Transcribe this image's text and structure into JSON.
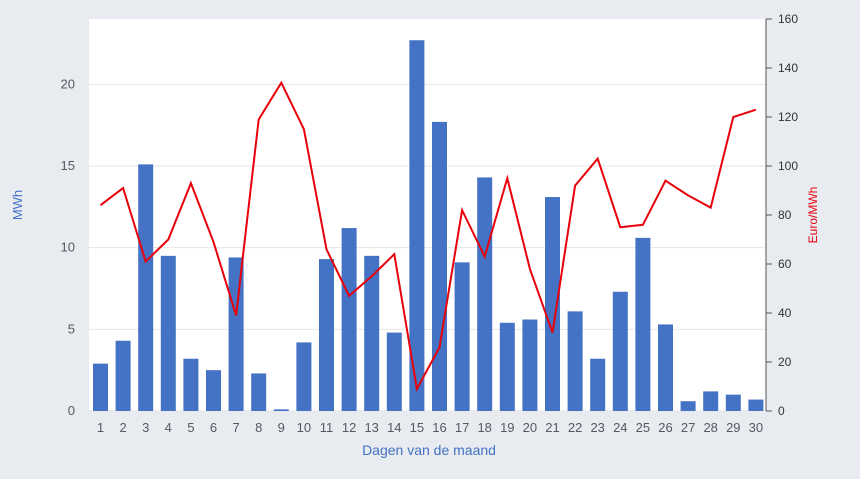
{
  "chart_data": {
    "type": "bar+line",
    "title": "",
    "xlabel": "Dagen van de maand",
    "ylabel_left": "MWh",
    "ylabel_right": "Euro/MWh",
    "ylim_left": [
      0,
      24
    ],
    "ylim_right": [
      0,
      160
    ],
    "yticks_left": [
      0,
      5,
      10,
      15,
      20
    ],
    "yticks_right": [
      0,
      20,
      40,
      60,
      80,
      100,
      120,
      140,
      160
    ],
    "grid": true,
    "categories": [
      "1",
      "2",
      "3",
      "4",
      "5",
      "6",
      "7",
      "8",
      "9",
      "10",
      "11",
      "12",
      "13",
      "14",
      "15",
      "16",
      "17",
      "18",
      "19",
      "20",
      "21",
      "22",
      "23",
      "24",
      "25",
      "26",
      "27",
      "28",
      "29",
      "30"
    ],
    "series": [
      {
        "kind": "bar",
        "axis": "left",
        "color": "#4472c4",
        "values": [
          2.9,
          4.3,
          15.1,
          9.5,
          3.2,
          2.5,
          9.4,
          2.3,
          0.1,
          4.2,
          9.3,
          11.2,
          9.5,
          4.8,
          22.7,
          17.7,
          9.1,
          14.3,
          5.4,
          5.6,
          13.1,
          6.1,
          3.2,
          7.3,
          10.6,
          5.3,
          0.6,
          1.2,
          1.0,
          0.7
        ]
      },
      {
        "kind": "line",
        "axis": "right",
        "color": "#e8000b",
        "values": [
          84,
          91,
          61,
          70,
          93,
          69,
          39,
          119,
          134,
          115,
          66,
          47,
          55,
          64,
          9,
          26,
          82,
          63,
          95,
          58,
          32,
          92,
          103,
          75,
          76,
          94,
          88,
          83,
          120,
          123
        ]
      }
    ],
    "colors": {
      "background": "#e8ebf0",
      "plot_background": "#ffffff",
      "grid": "#e6e6e6",
      "bar": "#4472c4",
      "line": "#e8000b"
    }
  }
}
